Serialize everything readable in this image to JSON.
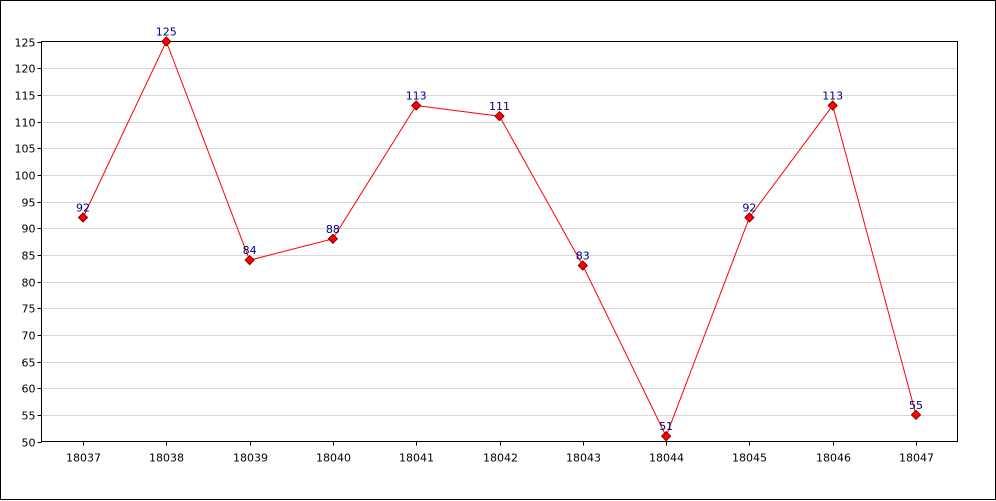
{
  "chart_data": {
    "type": "line",
    "title": "",
    "xlabel": "",
    "ylabel": "",
    "categories": [
      "18037",
      "18038",
      "18039",
      "18040",
      "18041",
      "18042",
      "18043",
      "18044",
      "18045",
      "18046",
      "18047"
    ],
    "series": [
      {
        "values": [
          92,
          125,
          84,
          88,
          113,
          111,
          83,
          51,
          92,
          113,
          55
        ],
        "line_color": "#ff0000",
        "marker": "diamond",
        "marker_fill": "#ff0000",
        "marker_stroke": "#800000"
      }
    ],
    "ylim": [
      50,
      125
    ],
    "ytick_step": 5,
    "yticks": [
      "50",
      "55",
      "60",
      "65",
      "70",
      "75",
      "80",
      "85",
      "90",
      "95",
      "100",
      "105",
      "110",
      "115",
      "120",
      "125"
    ],
    "grid": true,
    "grid_color": "#d8d8d8",
    "data_label_color": "#000080",
    "legend": "none"
  }
}
